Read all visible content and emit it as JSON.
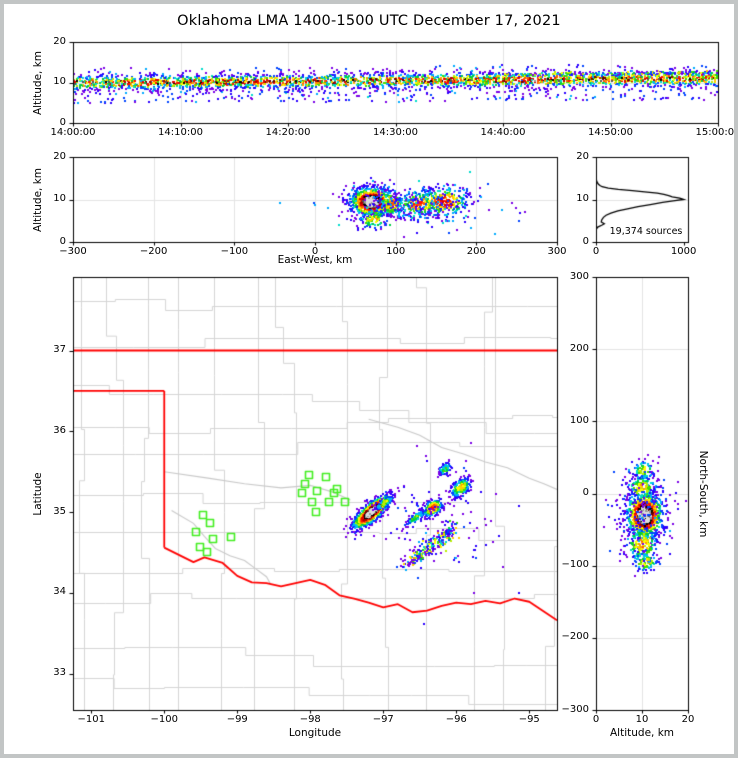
{
  "title": "Oklahoma LMA 1400-1500 UTC December 17, 2021",
  "chart_data": {
    "type": "multi-panel-lightning-source-density",
    "colors": {
      "background": "#ffffff",
      "frame_border": "#c2c5c5",
      "axes": "#000000",
      "grid": "#e4e4e4",
      "state_border": "#ff0000",
      "county_lines": "#d5d5d5",
      "rivers": "#c9c9c9",
      "stations": "#44ee22",
      "histogram_line": "#000000"
    },
    "density_colormap_low_to_high": [
      "#7a00e6",
      "#2a00ff",
      "#0044ff",
      "#00aaff",
      "#00ddcc",
      "#00cc44",
      "#44dd00",
      "#bbee00",
      "#ffff00",
      "#ffcc00",
      "#ff9900",
      "#ff5500",
      "#ff1100",
      "#dd0000",
      "#aa0000",
      "#660000",
      "#000000",
      "#555555",
      "#999999",
      "#dddddd"
    ],
    "panels": {
      "time_height": {
        "type": "scatter-density",
        "ylabel": "Altitude, km",
        "xlim": [
          0,
          3600
        ],
        "xticks": [
          0,
          600,
          1200,
          1800,
          2400,
          3000,
          3600
        ],
        "xtick_labels": [
          "14:00:00",
          "14:10:00",
          "14:20:00",
          "14:30:00",
          "14:40:00",
          "14:50:00",
          "15:00:00"
        ],
        "ylim": [
          0,
          20
        ],
        "yticks": [
          0,
          10,
          20
        ],
        "ytick_labels": [
          "0",
          "10",
          "20"
        ],
        "band": {
          "n": 2900,
          "alt_base_start_km": 9.9,
          "alt_base_end_km": 11.0,
          "alt_sd_km": 0.95,
          "max_density": 0.92,
          "outliers_n": 380,
          "ribbon": {
            "t0": 2300,
            "t1": 3600,
            "alt0": 11.8,
            "alt1": 12.5,
            "n": 220,
            "max": 0.45
          }
        }
      },
      "ew_height": {
        "type": "scatter-density",
        "xlabel": "East-West, km",
        "ylabel": "Altitude, km",
        "xlim": [
          -300,
          300
        ],
        "xticks": [
          -300,
          -200,
          -100,
          0,
          100,
          200,
          300
        ],
        "xtick_labels": [
          "−300",
          "−200",
          "−100",
          "0",
          "100",
          "200",
          "300"
        ],
        "ylim": [
          0,
          20
        ],
        "yticks": [
          0,
          10,
          20
        ],
        "ytick_labels": [
          "0",
          "10",
          "20"
        ],
        "clusters": [
          {
            "cx": 70,
            "cy": 9.5,
            "sx": 13,
            "sy": 1.7,
            "n": 950,
            "max": 1.0
          },
          {
            "cx": 95,
            "cy": 9.0,
            "sx": 8,
            "sy": 1.5,
            "n": 150,
            "max": 0.55
          },
          {
            "cx": 130,
            "cy": 9.0,
            "sx": 14,
            "sy": 1.6,
            "n": 220,
            "max": 0.6
          },
          {
            "cx": 160,
            "cy": 9.5,
            "sx": 16,
            "sy": 1.7,
            "n": 260,
            "max": 0.68
          },
          {
            "halo": true,
            "cx": 120,
            "cy": 8.5,
            "sx": 48,
            "sy": 2.6,
            "n": 260,
            "max": 0.22
          },
          {
            "cx": 72,
            "cy": 5.4,
            "sx": 10,
            "sy": 1.3,
            "n": 90,
            "max": 0.45
          }
        ]
      },
      "alt_histogram": {
        "type": "line",
        "annotation": "19,374 sources",
        "xlim": [
          0,
          1050
        ],
        "xticks": [
          0,
          1000
        ],
        "xtick_labels": [
          "0",
          "1000"
        ],
        "ylim": [
          0,
          20
        ],
        "yticks": [
          0,
          10,
          20
        ],
        "ytick_labels": [
          "0",
          "10",
          "20"
        ],
        "profile_alt_km_vs_count": [
          [
            0,
            0
          ],
          [
            3,
            2
          ],
          [
            3.5,
            20
          ],
          [
            4,
            70
          ],
          [
            4.3,
            95
          ],
          [
            4.7,
            60
          ],
          [
            5.2,
            65
          ],
          [
            5.8,
            85
          ],
          [
            6.3,
            115
          ],
          [
            6.8,
            170
          ],
          [
            7.3,
            250
          ],
          [
            7.8,
            360
          ],
          [
            8.3,
            480
          ],
          [
            8.8,
            620
          ],
          [
            9.3,
            760
          ],
          [
            9.7,
            880
          ],
          [
            10,
            1000
          ],
          [
            10.3,
            955
          ],
          [
            10.6,
            870
          ],
          [
            10.9,
            830
          ],
          [
            11.2,
            775
          ],
          [
            11.5,
            700
          ],
          [
            11.8,
            555
          ],
          [
            12.1,
            415
          ],
          [
            12.4,
            255
          ],
          [
            12.7,
            140
          ],
          [
            13,
            70
          ],
          [
            13.3,
            45
          ],
          [
            13.6,
            28
          ],
          [
            14,
            14
          ],
          [
            14.5,
            6
          ],
          [
            15,
            2
          ],
          [
            16,
            0
          ],
          [
            20,
            0
          ]
        ]
      },
      "map": {
        "type": "scatter-density-map",
        "xlabel": "Longitude",
        "ylabel": "Latitude",
        "xlim": [
          -101.25,
          -94.62
        ],
        "xticks": [
          -101,
          -100,
          -99,
          -98,
          -97,
          -96,
          -95
        ],
        "xtick_labels": [
          "−101",
          "−100",
          "−99",
          "−98",
          "−97",
          "−96",
          "−95"
        ],
        "ylim": [
          32.55,
          37.91
        ],
        "yticks": [
          33,
          34,
          35,
          36,
          37
        ],
        "ytick_labels": [
          "33",
          "34",
          "35",
          "36",
          "37"
        ],
        "state_border_red": [
          [
            [
              -101.25,
              37.0
            ],
            [
              -94.62,
              37.0
            ]
          ],
          [
            [
              -101.25,
              36.5
            ],
            [
              -100.0,
              36.5
            ]
          ],
          [
            [
              -100.0,
              36.5
            ],
            [
              -100.0,
              34.56
            ]
          ],
          [
            [
              -100.0,
              34.56
            ],
            [
              -99.8,
              34.47
            ],
            [
              -99.6,
              34.38
            ],
            [
              -99.45,
              34.44
            ],
            [
              -99.2,
              34.37
            ],
            [
              -99.0,
              34.21
            ],
            [
              -98.8,
              34.13
            ],
            [
              -98.6,
              34.12
            ],
            [
              -98.4,
              34.08
            ],
            [
              -98.2,
              34.12
            ],
            [
              -98.0,
              34.16
            ],
            [
              -97.8,
              34.1
            ],
            [
              -97.6,
              33.97
            ],
            [
              -97.4,
              33.93
            ],
            [
              -97.2,
              33.88
            ],
            [
              -97.0,
              33.82
            ],
            [
              -96.8,
              33.86
            ],
            [
              -96.6,
              33.76
            ],
            [
              -96.4,
              33.78
            ],
            [
              -96.2,
              33.84
            ],
            [
              -96.0,
              33.88
            ],
            [
              -95.8,
              33.86
            ],
            [
              -95.6,
              33.9
            ],
            [
              -95.4,
              33.87
            ],
            [
              -95.2,
              33.93
            ],
            [
              -95.0,
              33.89
            ],
            [
              -94.8,
              33.77
            ],
            [
              -94.62,
              33.66
            ]
          ]
        ],
        "rivers_gray": [
          [
            [
              -97.2,
              36.15
            ],
            [
              -96.8,
              36.05
            ],
            [
              -96.5,
              35.95
            ],
            [
              -96.2,
              35.8
            ],
            [
              -95.9,
              35.72
            ],
            [
              -95.6,
              35.62
            ],
            [
              -95.3,
              35.55
            ],
            [
              -95.0,
              35.42
            ],
            [
              -94.8,
              35.35
            ],
            [
              -94.62,
              35.28
            ]
          ],
          [
            [
              -99.9,
              35.02
            ],
            [
              -99.6,
              34.86
            ],
            [
              -99.45,
              34.7
            ],
            [
              -99.3,
              34.55
            ],
            [
              -99.1,
              34.46
            ],
            [
              -98.9,
              34.4
            ],
            [
              -98.75,
              34.3
            ],
            [
              -98.6,
              34.2
            ],
            [
              -98.55,
              34.12
            ]
          ],
          [
            [
              -100.0,
              35.5
            ],
            [
              -99.4,
              35.42
            ],
            [
              -98.9,
              35.35
            ],
            [
              -98.4,
              35.3
            ],
            [
              -98.0,
              35.33
            ],
            [
              -97.7,
              35.25
            ],
            [
              -97.45,
              35.15
            ]
          ]
        ],
        "stations_lonlat": [
          [
            -99.47,
            34.96
          ],
          [
            -99.38,
            34.86
          ],
          [
            -99.56,
            34.75
          ],
          [
            -99.33,
            34.67
          ],
          [
            -99.51,
            34.57
          ],
          [
            -99.42,
            34.51
          ],
          [
            -99.08,
            34.69
          ],
          [
            -98.02,
            35.46
          ],
          [
            -98.07,
            35.35
          ],
          [
            -98.11,
            35.24
          ],
          [
            -97.91,
            35.26
          ],
          [
            -97.79,
            35.44
          ],
          [
            -97.97,
            35.12
          ],
          [
            -97.92,
            35.0
          ],
          [
            -97.68,
            35.24
          ],
          [
            -97.64,
            35.29
          ],
          [
            -97.75,
            35.13
          ],
          [
            -97.52,
            35.12
          ]
        ],
        "clusters": [
          {
            "cx": -97.16,
            "cy": 35.0,
            "sx": 0.155,
            "sy": 0.05,
            "rot": 38,
            "n": 950,
            "max": 1.0
          },
          {
            "cx": -96.98,
            "cy": 35.12,
            "sx": 0.08,
            "sy": 0.03,
            "rot": 35,
            "n": 110,
            "max": 0.35
          },
          {
            "cx": -96.32,
            "cy": 35.05,
            "sx": 0.075,
            "sy": 0.045,
            "rot": 32,
            "n": 230,
            "max": 0.62
          },
          {
            "cx": -96.55,
            "cy": 34.93,
            "sx": 0.1,
            "sy": 0.03,
            "rot": 32,
            "n": 90,
            "max": 0.3
          },
          {
            "cx": -95.94,
            "cy": 35.3,
            "sx": 0.085,
            "sy": 0.05,
            "rot": 35,
            "n": 190,
            "max": 0.45
          },
          {
            "cx": -96.15,
            "cy": 35.53,
            "sx": 0.055,
            "sy": 0.035,
            "rot": 30,
            "n": 80,
            "max": 0.3
          },
          {
            "trail": true,
            "from": [
              -96.7,
              34.33
            ],
            "to": [
              -96.02,
              34.82
            ],
            "width": 0.05,
            "n": 230,
            "max": 0.5
          },
          {
            "halo": true,
            "cx": -96.35,
            "cy": 34.85,
            "sx": 0.45,
            "sy": 0.4,
            "n": 90,
            "max": 0.12
          }
        ],
        "county_grid": {
          "seed": 7,
          "v_spacing_deg": 0.5,
          "h_spacing_deg": 0.45,
          "jitter_deg": 0.3
        }
      },
      "ns_height": {
        "type": "scatter-density",
        "xlabel": "Altitude, km",
        "ylabel_right": "North-South, km",
        "xlim": [
          0,
          20
        ],
        "xticks": [
          0,
          10,
          20
        ],
        "xtick_labels": [
          "0",
          "10",
          "20"
        ],
        "ylim": [
          -300,
          300
        ],
        "yticks": [
          -300,
          -200,
          -100,
          0,
          100,
          200,
          300
        ],
        "ytick_labels": [
          "−300",
          "−200",
          "−100",
          "0",
          "100",
          "200",
          "300"
        ],
        "clusters": [
          {
            "cx": 10.6,
            "cy": -30,
            "sx": 2.0,
            "sy": 16,
            "n": 950,
            "max": 1.0
          },
          {
            "cx": 10.0,
            "cy": 8,
            "sx": 1.8,
            "sy": 10,
            "n": 160,
            "max": 0.45
          },
          {
            "cx": 10.4,
            "cy": 32,
            "sx": 1.4,
            "sy": 7,
            "n": 70,
            "max": 0.4
          },
          {
            "cx": 10.0,
            "cy": -70,
            "sx": 1.9,
            "sy": 12,
            "n": 190,
            "max": 0.5
          },
          {
            "cx": 10.8,
            "cy": -95,
            "sx": 1.6,
            "sy": 7,
            "n": 90,
            "max": 0.45
          },
          {
            "halo": true,
            "cx": 10.0,
            "cy": -30,
            "sx": 3.2,
            "sy": 28,
            "n": 150,
            "max": 0.15
          }
        ]
      }
    }
  }
}
